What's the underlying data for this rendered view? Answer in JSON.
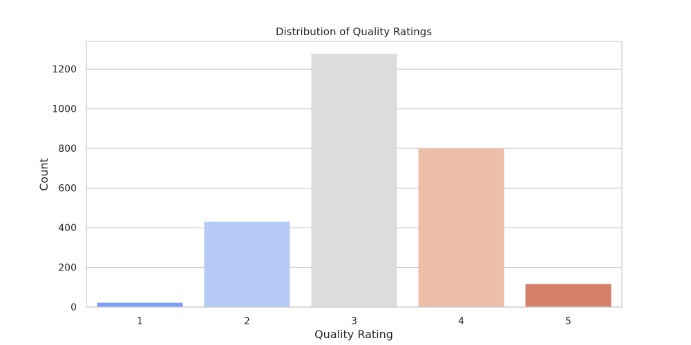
{
  "chart_data": {
    "type": "bar",
    "title": "Distribution of Quality Ratings",
    "xlabel": "Quality Rating",
    "ylabel": "Count",
    "categories": [
      "1",
      "2",
      "3",
      "4",
      "5"
    ],
    "values": [
      22,
      430,
      1278,
      800,
      116
    ],
    "colors": [
      "#7b9ff9",
      "#b5cbf5",
      "#dcdcdc",
      "#ecbda7",
      "#d6806c"
    ],
    "ylim": [
      0,
      1340
    ],
    "yticks": [
      0,
      200,
      400,
      600,
      800,
      1000,
      1200
    ],
    "grid": "horizontal",
    "legend": "none"
  }
}
